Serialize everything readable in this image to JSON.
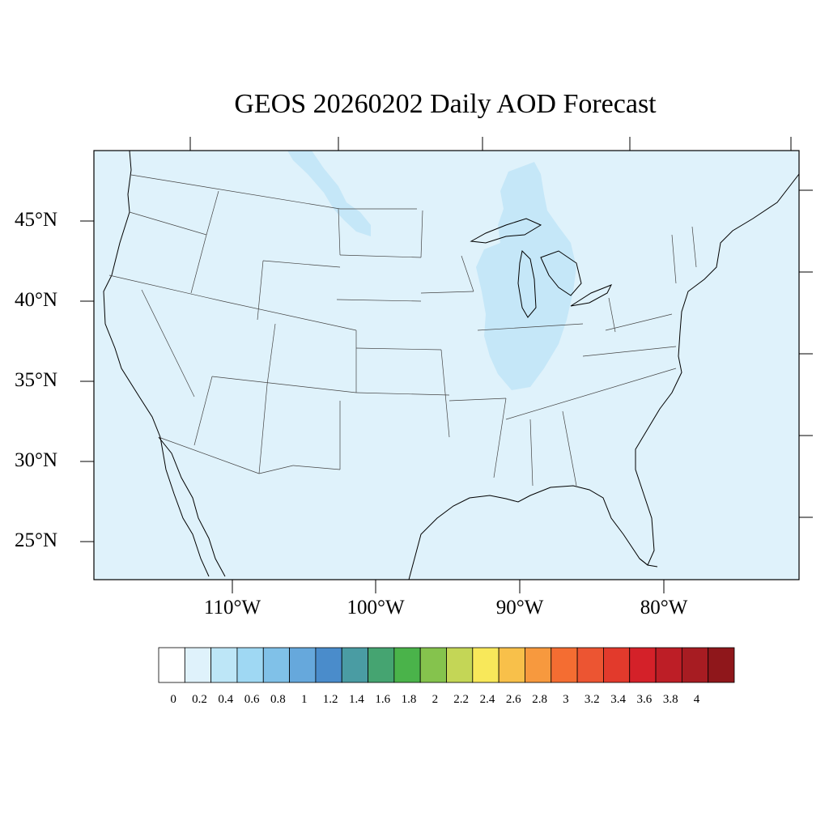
{
  "title": "GEOS 20260202 Daily AOD Forecast",
  "colors": {
    "ocean_background": "#dff2fb",
    "plume_light": "#c5e7f8",
    "border": "#000000",
    "state_line": "#444444"
  },
  "map": {
    "projection": "lambert-conformal",
    "lat_labels": [
      "45°N",
      "40°N",
      "35°N",
      "30°N",
      "25°N"
    ],
    "lon_labels": [
      "110°W",
      "100°W",
      "90°W",
      "80°W"
    ],
    "field_summary": {
      "dominant_bin": "0.2–0.4 background over CONUS",
      "elevated_bins": [
        "Great Lakes / Illinois–Indiana plume 0.2–0.4",
        "Northern Plains band 0.2–0.4"
      ]
    }
  },
  "colorbar": {
    "labels": [
      "0",
      "0.2",
      "0.4",
      "0.6",
      "0.8",
      "1",
      "1.2",
      "1.4",
      "1.6",
      "1.8",
      "2",
      "2.2",
      "2.4",
      "2.6",
      "2.8",
      "3",
      "3.2",
      "3.4",
      "3.6",
      "3.8",
      "4"
    ],
    "colors": [
      "#ffffff",
      "#dff2fb",
      "#bde6f7",
      "#9fd8f3",
      "#80c1e8",
      "#66a8dc",
      "#4a8ccb",
      "#4a9ca3",
      "#45a471",
      "#4ab34a",
      "#85c34d",
      "#c4d656",
      "#f8e85a",
      "#f8c04a",
      "#f7993e",
      "#f46d32",
      "#ec5532",
      "#e23a2c",
      "#d42129",
      "#bd1e26",
      "#a71c22",
      "#8f171b"
    ]
  }
}
